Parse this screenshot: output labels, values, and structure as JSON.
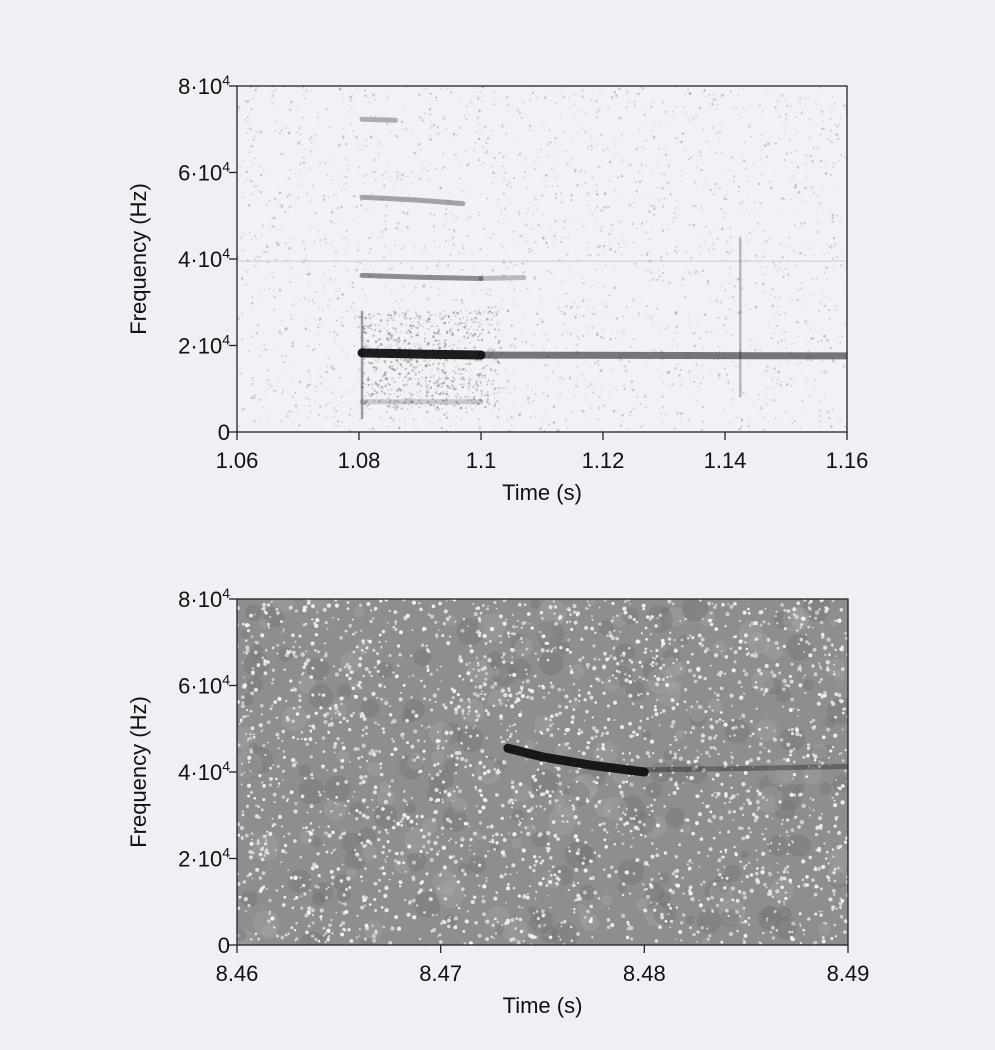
{
  "chart_data": [
    {
      "type": "heatmap",
      "title": "",
      "xlabel": "Time (s)",
      "ylabel": "Frequency (Hz)",
      "xlim": [
        1.06,
        1.16
      ],
      "ylim": [
        0,
        80000
      ],
      "x_ticks": [
        "1.06",
        "1.08",
        "1.1",
        "1.12",
        "1.14",
        "1.16"
      ],
      "y_ticks": [
        {
          "mant": "0",
          "exp": ""
        },
        {
          "mant": "2·10",
          "exp": "4"
        },
        {
          "mant": "4·10",
          "exp": "4"
        },
        {
          "mant": "6·10",
          "exp": "4"
        },
        {
          "mant": "8·10",
          "exp": "4"
        }
      ],
      "background": "light",
      "traces": [
        {
          "points": [
            [
              1.0805,
              18300
            ],
            [
              1.09,
              18000
            ],
            [
              1.1,
              17800
            ]
          ],
          "intensity": 0.95
        },
        {
          "points": [
            [
              1.1,
              17800
            ],
            [
              1.16,
              17600
            ]
          ],
          "intensity": 0.55
        },
        {
          "points": [
            [
              1.0805,
              36200
            ],
            [
              1.09,
              35800
            ],
            [
              1.1,
              35500
            ]
          ],
          "intensity": 0.45
        },
        {
          "points": [
            [
              1.1,
              35500
            ],
            [
              1.107,
              35700
            ]
          ],
          "intensity": 0.25
        },
        {
          "points": [
            [
              1.0805,
              54300
            ],
            [
              1.09,
              53600
            ],
            [
              1.097,
              52800
            ]
          ],
          "intensity": 0.35
        },
        {
          "points": [
            [
              1.0805,
              72300
            ],
            [
              1.086,
              72100
            ]
          ],
          "intensity": 0.3
        },
        {
          "points": [
            [
              1.0805,
              7000
            ],
            [
              1.1,
              7000
            ]
          ],
          "intensity": 0.18
        }
      ],
      "vertical_lines": [
        {
          "x": 1.0805,
          "y_range": [
            3000,
            28000
          ],
          "intensity": 0.45
        },
        {
          "x": 1.1425,
          "y_range": [
            8000,
            45000
          ],
          "intensity": 0.3
        }
      ],
      "horizontal_lines": [
        {
          "y": 39500,
          "x_range": [
            1.06,
            1.16
          ],
          "intensity": 0.12
        }
      ]
    },
    {
      "type": "heatmap",
      "title": "",
      "xlabel": "Time (s)",
      "ylabel": "Frequency (Hz)",
      "xlim": [
        8.46,
        8.49
      ],
      "ylim": [
        0,
        80000
      ],
      "x_ticks": [
        "8.46",
        "8.47",
        "8.48",
        "8.49"
      ],
      "y_ticks": [
        {
          "mant": "0",
          "exp": ""
        },
        {
          "mant": "2·10",
          "exp": "4"
        },
        {
          "mant": "4·10",
          "exp": "4"
        },
        {
          "mant": "6·10",
          "exp": "4"
        },
        {
          "mant": "8·10",
          "exp": "4"
        }
      ],
      "background": "noisy",
      "traces": [
        {
          "points": [
            [
              8.4733,
              45500
            ],
            [
              8.475,
              43500
            ],
            [
              8.4775,
              41500
            ],
            [
              8.48,
              40000
            ]
          ],
          "intensity": 0.95
        },
        {
          "points": [
            [
              8.48,
              40500
            ],
            [
              8.485,
              40800
            ],
            [
              8.49,
              41300
            ]
          ],
          "intensity": 0.35
        }
      ],
      "vertical_lines": [],
      "horizontal_lines": []
    }
  ]
}
